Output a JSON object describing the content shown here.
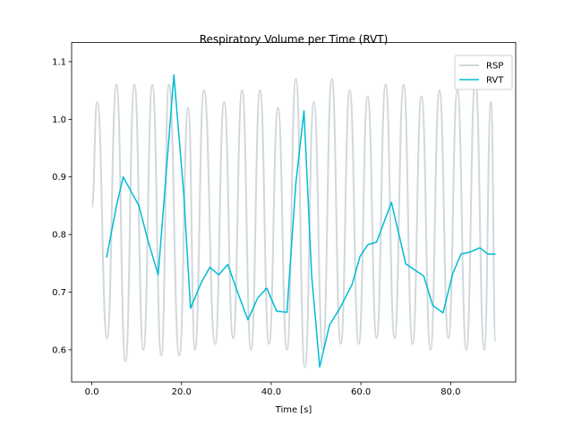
{
  "chart_data": {
    "type": "line",
    "title": "Respiratory Volume per Time (RVT)",
    "xlabel": "Time [s]",
    "xlim": [
      -4.5,
      94.5
    ],
    "ylim": [
      0.544,
      1.117
    ],
    "xticks": [
      {
        "value": 0,
        "label": "0.0"
      },
      {
        "value": 20,
        "label": "20.0"
      },
      {
        "value": 40,
        "label": "40.0"
      },
      {
        "value": 60,
        "label": "60.0"
      },
      {
        "value": 80,
        "label": "80.0"
      }
    ],
    "yticks": [
      0.6,
      0.7,
      0.8,
      0.9,
      {
        "value": 1,
        "label": "1.0"
      },
      1.1
    ],
    "legend": "upper right",
    "grid": false,
    "series": [
      {
        "name": "RSP",
        "color": "#cfd8dc",
        "x": [
          0,
          1.2,
          3.4,
          5.5,
          7.5,
          9.5,
          11.5,
          13.5,
          15.5,
          17.2,
          19.5,
          21.5,
          23,
          25,
          27.5,
          29.5,
          31.5,
          33.5,
          35.5,
          37.5,
          39.5,
          41.5,
          43.5,
          45.5,
          47.5,
          49.5,
          51.5,
          53.5,
          55.5,
          57.5,
          59.5,
          61.5,
          63.5,
          65.5,
          67.5,
          69.5,
          71.5,
          73.5,
          75.5,
          77.5,
          79.5,
          81.5,
          83.5,
          85.5,
          87.5,
          89,
          90
        ],
        "values": [
          0.848,
          1.03,
          0.62,
          1.06,
          0.58,
          1.06,
          0.6,
          1.06,
          0.59,
          1.06,
          0.59,
          1.02,
          0.6,
          1.05,
          0.61,
          1.03,
          0.62,
          1.05,
          0.6,
          1.05,
          0.61,
          1.02,
          0.6,
          1.07,
          0.57,
          1.03,
          0.6,
          1.07,
          0.61,
          1.05,
          0.61,
          1.04,
          0.62,
          1.06,
          0.62,
          1.06,
          0.61,
          1.04,
          0.6,
          1.05,
          0.62,
          1.05,
          0.6,
          1.07,
          0.6,
          1.03,
          0.615
        ]
      },
      {
        "name": "RVT",
        "color": "#00bcd4",
        "x": [
          3.3,
          5.5,
          7,
          10.5,
          12.5,
          14.8,
          18.3,
          20.5,
          22,
          24.5,
          26.3,
          28.3,
          30.3,
          32.5,
          34.8,
          37,
          39,
          41.2,
          43.5,
          45.5,
          47.3,
          49,
          50.8,
          53,
          55.3,
          58,
          59.8,
          61.5,
          63.5,
          66.8,
          70,
          74,
          76,
          78.3,
          80.5,
          82.3,
          84.5,
          86.5,
          88.3,
          90
        ],
        "values": [
          0.76,
          0.85,
          0.9,
          0.85,
          0.79,
          0.73,
          1.077,
          0.87,
          0.672,
          0.718,
          0.743,
          0.73,
          0.748,
          0.7,
          0.652,
          0.69,
          0.707,
          0.667,
          0.665,
          0.89,
          1.015,
          0.73,
          0.57,
          0.643,
          0.672,
          0.713,
          0.762,
          0.782,
          0.787,
          0.856,
          0.749,
          0.728,
          0.677,
          0.664,
          0.733,
          0.766,
          0.77,
          0.777,
          0.766,
          0.766
        ]
      }
    ]
  }
}
